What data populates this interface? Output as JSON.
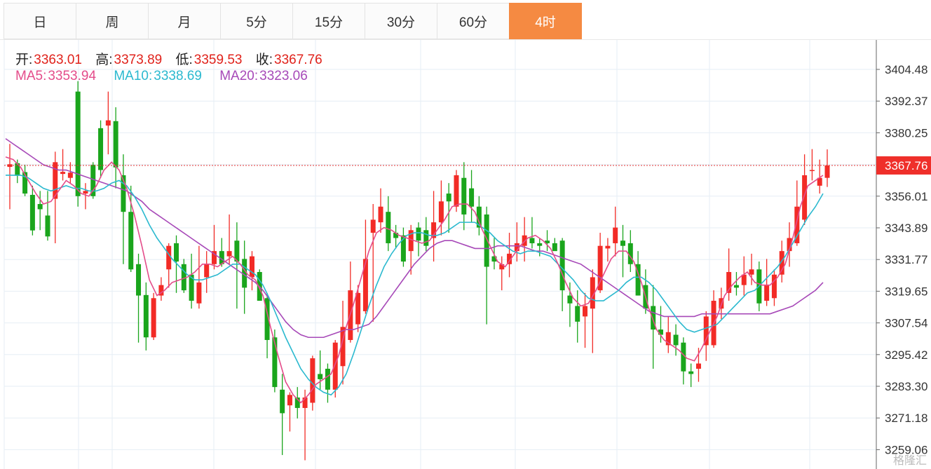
{
  "tabs": [
    {
      "label": "日",
      "active": false
    },
    {
      "label": "周",
      "active": false
    },
    {
      "label": "月",
      "active": false
    },
    {
      "label": "5分",
      "active": false
    },
    {
      "label": "15分",
      "active": false
    },
    {
      "label": "30分",
      "active": false
    },
    {
      "label": "60分",
      "active": false
    },
    {
      "label": "4时",
      "active": true
    }
  ],
  "legend": {
    "open_label": "开:",
    "open": "3363.01",
    "high_label": "高:",
    "high": "3373.89",
    "low_label": "低:",
    "low": "3359.53",
    "close_label": "收:",
    "close": "3367.76",
    "ma5_label": "MA5:",
    "ma5": "3353.94",
    "ma10_label": "MA10:",
    "ma10": "3338.69",
    "ma20_label": "MA20:",
    "ma20": "3323.06"
  },
  "watermark": "格隆汇",
  "colors": {
    "up": "#f22b26",
    "down": "#1aa51c",
    "ma5": "#e44c8a",
    "ma10": "#2bb9cf",
    "ma20": "#a749b8",
    "grid": "#e6eef5",
    "active_tab": "#f58a42",
    "price_line": "#e03030"
  },
  "chart_data": {
    "type": "candlestick",
    "y_ticks": [
      "3404.48",
      "3392.37",
      "3380.25",
      "3368.13",
      "3356.01",
      "3343.89",
      "3331.77",
      "3319.65",
      "3307.54",
      "3295.42",
      "3283.30",
      "3271.18",
      "3259.06"
    ],
    "ylim": [
      3259.06,
      3404.48
    ],
    "last_price": "3367.76",
    "candles": [
      [
        3367.2,
        3368.2,
        3376,
        3351
      ],
      [
        3368.6,
        3363.8,
        3370,
        3361
      ],
      [
        3365.2,
        3357,
        3368,
        3356
      ],
      [
        3356.5,
        3342.9,
        3360,
        3341
      ],
      [
        3353,
        3351,
        3358,
        3343
      ],
      [
        3348.6,
        3340.6,
        3358,
        3339
      ],
      [
        3355,
        3369,
        3373,
        3338
      ],
      [
        3364.5,
        3365.3,
        3374,
        3362
      ],
      [
        3363,
        3365,
        3369,
        3361
      ],
      [
        3396,
        3356,
        3400,
        3352
      ],
      [
        3357,
        3358,
        3361,
        3351
      ],
      [
        3368,
        3356,
        3369,
        3355
      ],
      [
        3382,
        3366,
        3385,
        3363
      ],
      [
        3383,
        3385,
        3396,
        3372
      ],
      [
        3384.7,
        3367,
        3390,
        3359
      ],
      [
        3364,
        3350,
        3372,
        3330
      ],
      [
        3350,
        3328,
        3360,
        3327
      ],
      [
        3330,
        3318,
        3334,
        3300
      ],
      [
        3318.2,
        3302,
        3323,
        3297
      ],
      [
        3302,
        3317,
        3319,
        3301
      ],
      [
        3318,
        3322,
        3325,
        3316
      ],
      [
        3328,
        3337,
        3338,
        3321
      ],
      [
        3338,
        3331,
        3341,
        3319
      ],
      [
        3330,
        3320,
        3332,
        3319
      ],
      [
        3326,
        3316,
        3334,
        3313
      ],
      [
        3315,
        3323,
        3337,
        3313
      ],
      [
        3325,
        3330,
        3335,
        3319
      ],
      [
        3330,
        3335,
        3345,
        3328
      ],
      [
        3335,
        3330,
        3340,
        3329
      ],
      [
        3333,
        3335,
        3349,
        3330
      ],
      [
        3339,
        3331,
        3346,
        3313
      ],
      [
        3332,
        3321,
        3339,
        3311
      ],
      [
        3325,
        3333,
        3335,
        3320
      ],
      [
        3327,
        3316,
        3328,
        3316
      ],
      [
        3317,
        3301,
        3319,
        3294
      ],
      [
        3302,
        3283,
        3305,
        3281
      ],
      [
        3282,
        3273,
        3288,
        3257
      ],
      [
        3276,
        3280,
        3281,
        3266
      ],
      [
        3279,
        3275,
        3283,
        3271
      ],
      [
        3275,
        3279,
        3282,
        3255
      ],
      [
        3277,
        3294,
        3295,
        3274
      ],
      [
        3288,
        3286,
        3297,
        3282
      ],
      [
        3290,
        3282,
        3292,
        3277
      ],
      [
        3282,
        3300,
        3301,
        3279
      ],
      [
        3291,
        3306,
        3316,
        3284
      ],
      [
        3301,
        3320,
        3331,
        3300
      ],
      [
        3307,
        3319,
        3322,
        3304
      ],
      [
        3312,
        3332,
        3347,
        3311
      ],
      [
        3342,
        3347,
        3353,
        3308
      ],
      [
        3346,
        3352,
        3359,
        3342
      ],
      [
        3350,
        3338,
        3356,
        3335
      ],
      [
        3342,
        3340,
        3345,
        3336
      ],
      [
        3341,
        3331,
        3344,
        3329
      ],
      [
        3335,
        3343,
        3345,
        3326
      ],
      [
        3344,
        3339,
        3346,
        3333
      ],
      [
        3343,
        3337,
        3348,
        3335
      ],
      [
        3340,
        3346,
        3358,
        3331
      ],
      [
        3346,
        3354,
        3362,
        3341
      ],
      [
        3357,
        3354,
        3361,
        3342
      ],
      [
        3352,
        3364,
        3366,
        3350
      ],
      [
        3363,
        3349,
        3369,
        3343
      ],
      [
        3359,
        3352,
        3366,
        3346
      ],
      [
        3352,
        3344,
        3356,
        3341
      ],
      [
        3349,
        3329,
        3352,
        3307
      ],
      [
        3333,
        3331,
        3340,
        3328
      ],
      [
        3328,
        3330,
        3333,
        3320
      ],
      [
        3330,
        3334,
        3342,
        3325
      ],
      [
        3335,
        3338,
        3346,
        3331
      ],
      [
        3337,
        3341,
        3348,
        3331
      ],
      [
        3340,
        3338,
        3348,
        3336
      ],
      [
        3338,
        3337,
        3340,
        3333
      ],
      [
        3339,
        3338,
        3343,
        3335
      ],
      [
        3338,
        3335,
        3340,
        3336
      ],
      [
        3339,
        3320,
        3340,
        3312
      ],
      [
        3318,
        3315,
        3323,
        3306
      ],
      [
        3314,
        3308,
        3320,
        3300
      ],
      [
        3310,
        3314,
        3319,
        3298
      ],
      [
        3313,
        3325,
        3328,
        3296
      ],
      [
        3320,
        3337,
        3342,
        3319
      ],
      [
        3336,
        3337,
        3340,
        3331
      ],
      [
        3338,
        3344,
        3352,
        3333
      ],
      [
        3339,
        3337,
        3345,
        3325
      ],
      [
        3338,
        3330,
        3343,
        3327
      ],
      [
        3330,
        3318,
        3335,
        3318
      ],
      [
        3322,
        3313,
        3328,
        3311
      ],
      [
        3314,
        3305,
        3322,
        3290
      ],
      [
        3305,
        3303,
        3314,
        3300
      ],
      [
        3299,
        3304,
        3310,
        3296
      ],
      [
        3303,
        3299,
        3307,
        3295
      ],
      [
        3300,
        3289,
        3302,
        3284
      ],
      [
        3289,
        3288,
        3292,
        3283
      ],
      [
        3290,
        3292,
        3298,
        3285
      ],
      [
        3299,
        3310,
        3312,
        3293
      ],
      [
        3299,
        3316,
        3320,
        3298
      ],
      [
        3313,
        3317,
        3321,
        3309
      ],
      [
        3319,
        3327,
        3336,
        3316
      ],
      [
        3322,
        3321,
        3327,
        3318
      ],
      [
        3322,
        3326,
        3333,
        3318
      ],
      [
        3326,
        3328,
        3334,
        3322
      ],
      [
        3328,
        3315,
        3331,
        3312
      ],
      [
        3316,
        3322,
        3332,
        3314
      ],
      [
        3317,
        3326,
        3328,
        3314
      ],
      [
        3326,
        3335,
        3339,
        3323
      ],
      [
        3335,
        3340,
        3346,
        3329
      ],
      [
        3338,
        3352,
        3362,
        3337
      ],
      [
        3347,
        3364,
        3372,
        3345
      ],
      [
        3366,
        3366,
        3374,
        3362
      ],
      [
        3360,
        3363,
        3370,
        3357
      ],
      [
        3363.01,
        3367.76,
        3373.89,
        3359.53
      ]
    ],
    "ma5": [
      3371,
      3370,
      3367,
      3362,
      3357,
      3353,
      3354,
      3358,
      3362,
      3360,
      3357,
      3356,
      3360,
      3366,
      3369,
      3366,
      3359,
      3349,
      3337,
      3324,
      3318,
      3320,
      3323,
      3324,
      3325,
      3327,
      3330,
      3330,
      3329,
      3331,
      3333,
      3330,
      3326,
      3324,
      3318,
      3306,
      3295,
      3285,
      3280,
      3277,
      3280,
      3284,
      3286,
      3288,
      3295,
      3306,
      3315,
      3325,
      3335,
      3342,
      3344,
      3343,
      3341,
      3340,
      3339,
      3338,
      3339,
      3343,
      3347,
      3352,
      3353,
      3353,
      3350,
      3343,
      3337,
      3331,
      3329,
      3333,
      3337,
      3340,
      3341,
      3339,
      3336,
      3330,
      3323,
      3317,
      3314,
      3315,
      3320,
      3326,
      3332,
      3335,
      3335,
      3331,
      3323,
      3313,
      3305,
      3301,
      3299,
      3297,
      3294,
      3293,
      3298,
      3304,
      3310,
      3318,
      3322,
      3325,
      3327,
      3323,
      3322,
      3322,
      3325,
      3330,
      3340,
      3352,
      3360,
      3362,
      3364
    ],
    "ma10": [
      3364,
      3364,
      3364,
      3363,
      3361,
      3359,
      3358,
      3359,
      3360,
      3359,
      3359,
      3358,
      3358,
      3359,
      3361,
      3362,
      3360,
      3356,
      3351,
      3345,
      3340,
      3336,
      3332,
      3329,
      3326,
      3324,
      3324,
      3325,
      3326,
      3328,
      3330,
      3330,
      3328,
      3326,
      3322,
      3316,
      3309,
      3302,
      3296,
      3290,
      3286,
      3283,
      3281,
      3280,
      3283,
      3288,
      3296,
      3305,
      3314,
      3322,
      3329,
      3334,
      3338,
      3341,
      3342,
      3342,
      3341,
      3341,
      3342,
      3344,
      3346,
      3346,
      3346,
      3344,
      3342,
      3339,
      3337,
      3335,
      3334,
      3335,
      3335,
      3334,
      3333,
      3330,
      3327,
      3324,
      3320,
      3317,
      3316,
      3316,
      3318,
      3320,
      3323,
      3325,
      3325,
      3323,
      3320,
      3316,
      3312,
      3308,
      3305,
      3304,
      3305,
      3306,
      3307,
      3310,
      3313,
      3316,
      3319,
      3320,
      3323,
      3326,
      3329,
      3333,
      3338,
      3343,
      3348,
      3352,
      3357
    ],
    "ma20": [
      3378,
      3376,
      3374,
      3372,
      3370,
      3368,
      3367,
      3366,
      3366,
      3365,
      3364,
      3363,
      3362,
      3361,
      3360,
      3359,
      3358,
      3356,
      3354,
      3351,
      3349,
      3347,
      3345,
      3343,
      3341,
      3339,
      3337,
      3335,
      3333,
      3331,
      3329,
      3327,
      3325,
      3323,
      3320,
      3316,
      3312,
      3308,
      3305,
      3303,
      3302,
      3302,
      3302,
      3303,
      3304,
      3305,
      3305,
      3306,
      3307,
      3310,
      3314,
      3318,
      3322,
      3326,
      3330,
      3333,
      3336,
      3338,
      3339,
      3339,
      3338,
      3337,
      3336,
      3336,
      3336,
      3337,
      3337,
      3337,
      3337,
      3336,
      3335,
      3335,
      3334,
      3333,
      3332,
      3331,
      3330,
      3328,
      3326,
      3324,
      3322,
      3320,
      3318,
      3316,
      3314,
      3312,
      3311,
      3310,
      3310,
      3310,
      3310,
      3310,
      3311,
      3311,
      3311,
      3311,
      3311,
      3311,
      3311,
      3311,
      3311,
      3311,
      3312,
      3313,
      3314,
      3316,
      3318,
      3320,
      3323
    ]
  }
}
